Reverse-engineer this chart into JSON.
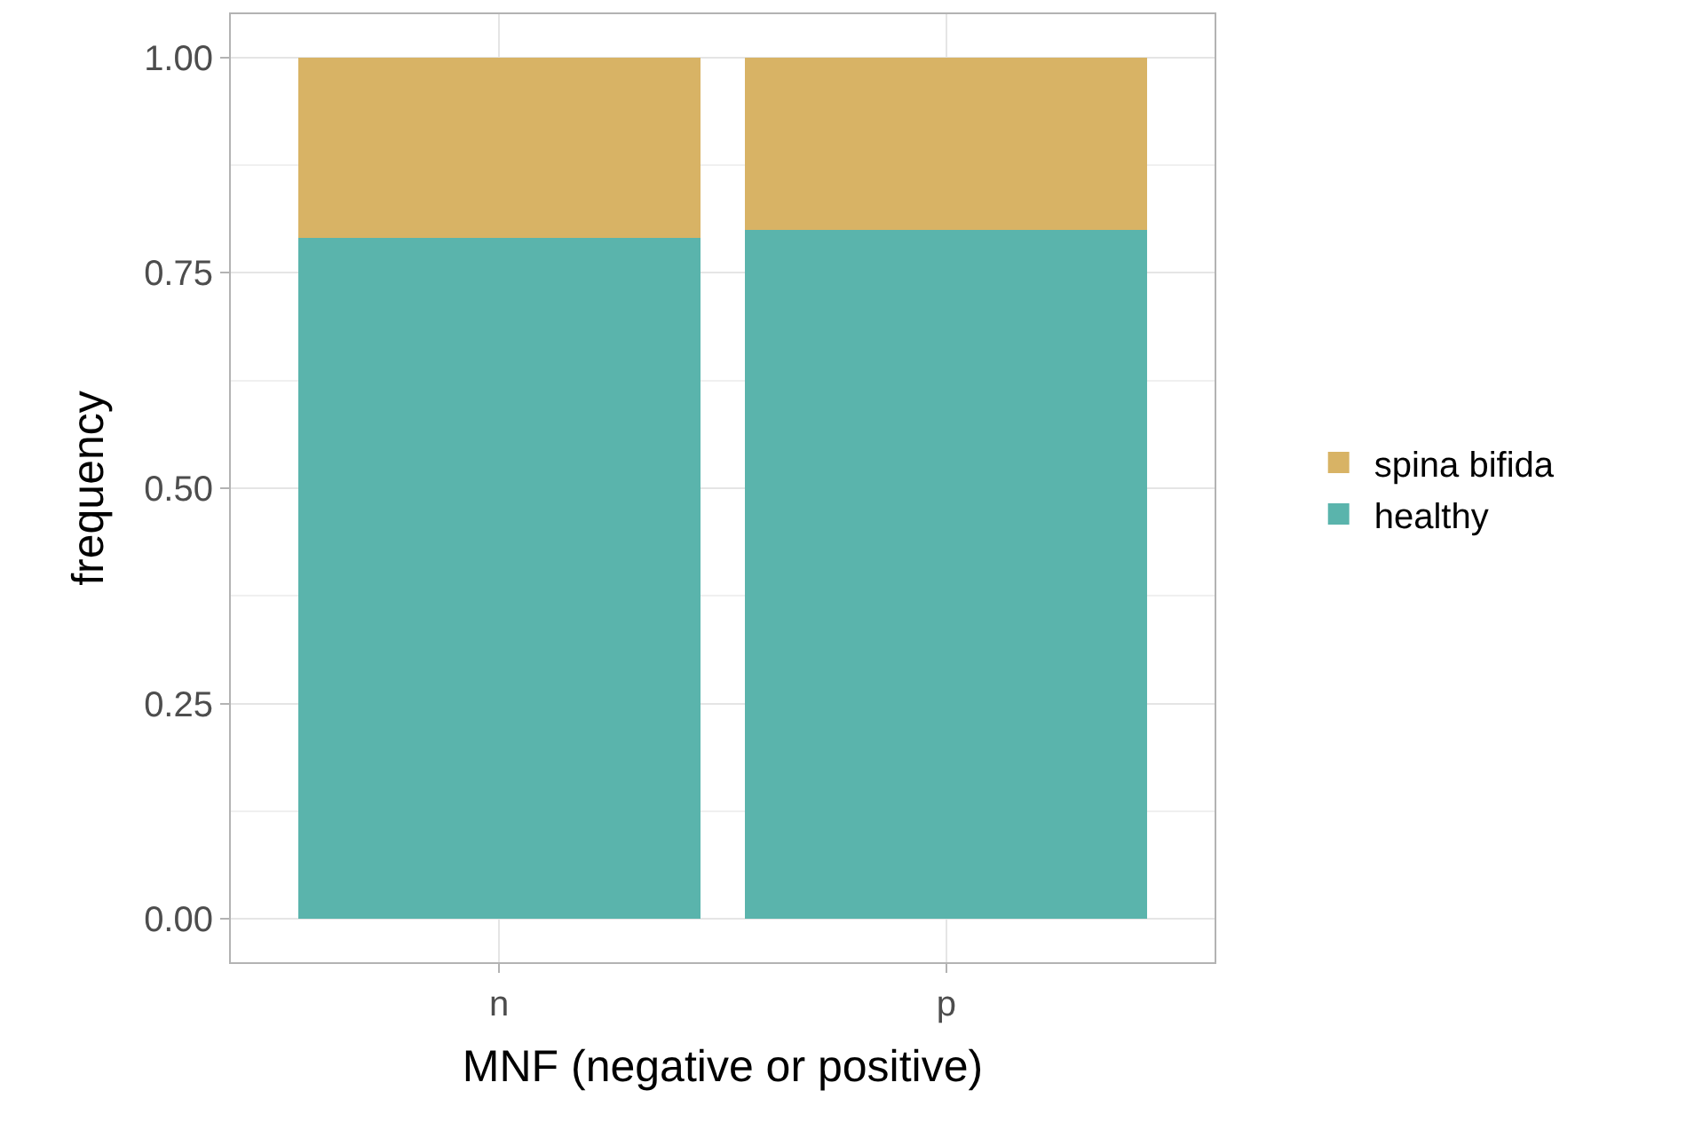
{
  "chart_data": {
    "type": "bar",
    "stacked": true,
    "xlabel": "MNF (negative or positive)",
    "ylabel": "frequency",
    "categories": [
      "n",
      "p"
    ],
    "series": [
      {
        "name": "healthy",
        "color": "#5ab4ac",
        "values": [
          0.79,
          0.8
        ]
      },
      {
        "name": "spina bifida",
        "color": "#d8b365",
        "values": [
          0.21,
          0.2
        ]
      }
    ],
    "ylim": [
      -0.05,
      1.05
    ],
    "yticks": [
      {
        "value": 0,
        "label": "0.00"
      },
      {
        "value": 0.25,
        "label": "0.25"
      },
      {
        "value": 0.5,
        "label": "0.50"
      },
      {
        "value": 0.75,
        "label": "0.75"
      },
      {
        "value": 1,
        "label": "1.00"
      }
    ],
    "grid": true,
    "legend": "right"
  }
}
